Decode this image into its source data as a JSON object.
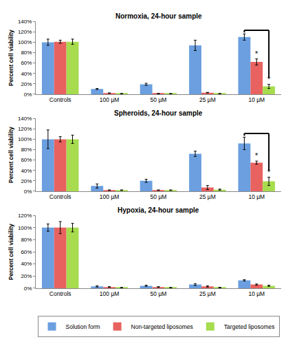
{
  "chart_data": [
    {
      "type": "bar",
      "title": "Normoxia, 24-hour sample",
      "y_label": "Percent cell viability",
      "categories": [
        "Controls",
        "100 µM",
        "50 µM",
        "25 µM",
        "10 µM"
      ],
      "series": [
        {
          "name": "Solution form",
          "color": "#6b9fe0",
          "values": [
            100,
            10,
            19,
            94,
            110
          ],
          "errors": [
            6,
            1,
            2,
            10,
            6
          ]
        },
        {
          "name": "Non-targeted liposomes",
          "color": "#e8625f",
          "values": [
            101,
            2,
            1,
            3,
            62
          ],
          "errors": [
            3,
            0.5,
            0.5,
            0.5,
            6
          ]
        },
        {
          "name": "Targeted liposomes",
          "color": "#a6dc4e",
          "values": [
            101,
            1,
            1,
            1,
            15
          ],
          "errors": [
            5,
            0.3,
            0.3,
            0.3,
            4
          ]
        }
      ],
      "ylim": [
        0,
        140
      ],
      "yticks": [
        {
          "value": 0,
          "label": "0%"
        },
        {
          "value": 20,
          "label": "20%"
        },
        {
          "value": 40,
          "label": "40%"
        },
        {
          "value": 60,
          "label": "60%"
        },
        {
          "value": 80,
          "label": "80%"
        },
        {
          "value": 100,
          "label": "100%"
        },
        {
          "value": 120,
          "label": "120%"
        },
        {
          "value": 140,
          "label": "140%"
        }
      ],
      "grid": false,
      "legend": "bottom",
      "annotations": [
        {
          "text": "*",
          "category": "10 µM",
          "series": "Non-targeted liposomes"
        },
        {
          "text": "*",
          "category": "10 µM",
          "series": "Targeted liposomes"
        }
      ],
      "comparisons": [
        {
          "category": "10 µM",
          "from": "Solution form",
          "to": "Targeted liposomes"
        }
      ]
    },
    {
      "type": "bar",
      "title": "Spheroids, 24-hour sample",
      "y_label": "Percent cell viability",
      "categories": [
        "Controls",
        "100 µM",
        "50 µM",
        "25 µM",
        "10 µM"
      ],
      "series": [
        {
          "name": "Solution form",
          "color": "#6b9fe0",
          "values": [
            100,
            10,
            20,
            72,
            92
          ],
          "errors": [
            18,
            4,
            3,
            5,
            12
          ]
        },
        {
          "name": "Non-targeted liposomes",
          "color": "#e8625f",
          "values": [
            100,
            2,
            2,
            7,
            55
          ],
          "errors": [
            5,
            0.5,
            0.5,
            4,
            3
          ]
        },
        {
          "name": "Targeted liposomes",
          "color": "#a6dc4e",
          "values": [
            100,
            2,
            2,
            3,
            19
          ],
          "errors": [
            8,
            0.5,
            0.5,
            1,
            8
          ]
        }
      ],
      "ylim": [
        0,
        140
      ],
      "yticks": [
        {
          "value": 0,
          "label": "0%"
        },
        {
          "value": 20,
          "label": "20%"
        },
        {
          "value": 40,
          "label": "40%"
        },
        {
          "value": 60,
          "label": "60%"
        },
        {
          "value": 80,
          "label": "80%"
        },
        {
          "value": 100,
          "label": "100%"
        },
        {
          "value": 120,
          "label": "120%"
        },
        {
          "value": 140,
          "label": "140%"
        }
      ],
      "grid": false,
      "annotations": [
        {
          "text": "*",
          "category": "10 µM",
          "series": "Non-targeted liposomes"
        },
        {
          "text": "*",
          "category": "10 µM",
          "series": "Targeted liposomes"
        }
      ],
      "comparisons": [
        {
          "category": "10 µM",
          "from": "Solution form",
          "to": "Targeted liposomes"
        }
      ]
    },
    {
      "type": "bar",
      "title": "Hypoxia, 24-hour sample",
      "y_label": "Percent cell viability",
      "categories": [
        "Controls",
        "100 µM",
        "50 µM",
        "25 µM",
        "10 µM"
      ],
      "series": [
        {
          "name": "Solution form",
          "color": "#6b9fe0",
          "values": [
            100,
            3,
            4,
            6,
            13
          ],
          "errors": [
            6,
            1,
            1,
            1.5,
            1
          ]
        },
        {
          "name": "Non-targeted liposomes",
          "color": "#e8625f",
          "values": [
            100,
            2,
            2,
            3,
            6
          ],
          "errors": [
            10,
            0.5,
            0.5,
            1,
            1
          ]
        },
        {
          "name": "Targeted liposomes",
          "color": "#a6dc4e",
          "values": [
            100,
            1,
            1,
            1,
            4
          ],
          "errors": [
            7,
            0.3,
            0.3,
            0.5,
            1
          ]
        }
      ],
      "ylim": [
        0,
        120
      ],
      "yticks": [
        {
          "value": 0,
          "label": "0%"
        },
        {
          "value": 20,
          "label": "20%"
        },
        {
          "value": 40,
          "label": "40%"
        },
        {
          "value": 60,
          "label": "60%"
        },
        {
          "value": 80,
          "label": "80%"
        },
        {
          "value": 100,
          "label": "100%"
        },
        {
          "value": 120,
          "label": "120%"
        }
      ],
      "grid": false
    }
  ]
}
